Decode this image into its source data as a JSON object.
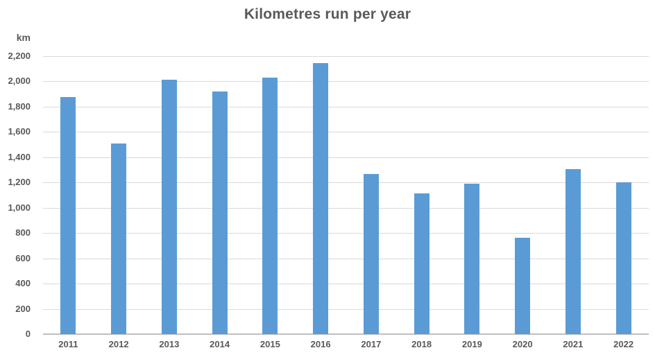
{
  "chart_data": {
    "type": "bar",
    "title": "Kilometres run per year",
    "ylabel": "km",
    "xlabel": "",
    "categories": [
      "2011",
      "2012",
      "2013",
      "2014",
      "2015",
      "2016",
      "2017",
      "2018",
      "2019",
      "2020",
      "2021",
      "2022"
    ],
    "values": [
      1875,
      1510,
      2015,
      1920,
      2030,
      2145,
      1265,
      1115,
      1190,
      760,
      1305,
      1200
    ],
    "ylim": [
      0,
      2200
    ],
    "ytick_step": 200,
    "grid": true,
    "legend_position": "none",
    "bar_color": "#5B9BD5",
    "text_color": "#595959",
    "gridline_color": "#D9D9D9",
    "axis_line_color": "#BFBFBF"
  }
}
